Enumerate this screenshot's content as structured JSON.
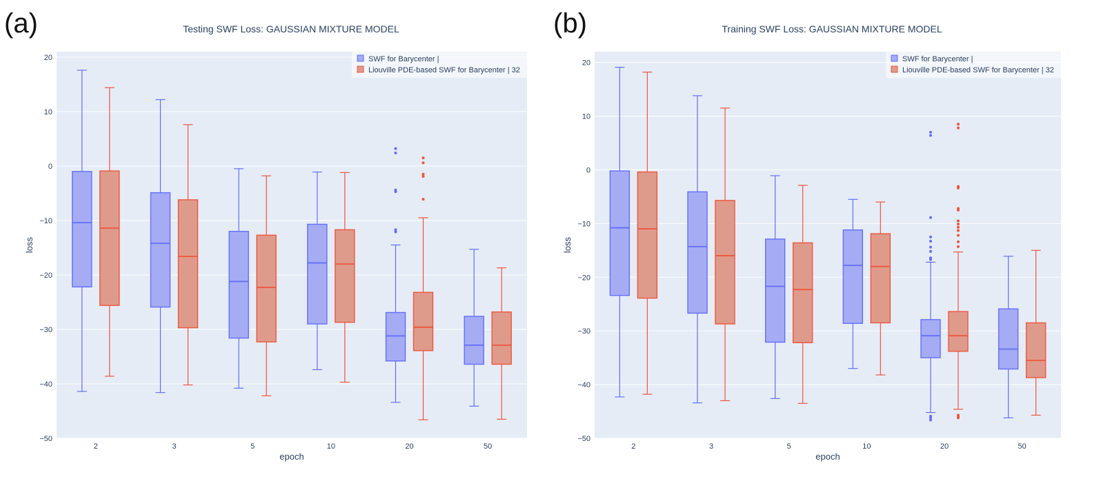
{
  "colors": {
    "plot_bg": "#e5ecf6",
    "grid": "#ffffff",
    "text": "#2a3f5f",
    "swf_line": "#636efa",
    "swf_fill": "#a5acf3",
    "liouville_line": "#ef553b",
    "liouville_fill": "#de9b8c"
  },
  "panels": [
    {
      "letter": "(a)"
    },
    {
      "letter": "(b)"
    }
  ],
  "chart_data": [
    {
      "type": "box",
      "title": "Testing SWF Loss: GAUSSIAN MIXTURE MODEL",
      "xlabel": "epoch",
      "ylabel": "loss",
      "ylim": [
        -50,
        21
      ],
      "yticks": [
        20,
        10,
        0,
        -10,
        -20,
        -30,
        -40,
        -50
      ],
      "ytick_labels": [
        "20",
        "10",
        "0",
        "−10",
        "−20",
        "−30",
        "−40",
        "−50"
      ],
      "categories": [
        "2",
        "3",
        "5",
        "10",
        "20",
        "50"
      ],
      "grid": true,
      "legend_position": "top-right",
      "series": [
        {
          "name": "SWF for Barycenter |",
          "color": "#636efa",
          "boxes": [
            {
              "min": -41.4,
              "q1": -22.2,
              "median": -10.4,
              "q3": -1.0,
              "max": 17.6,
              "outliers": []
            },
            {
              "min": -41.6,
              "q1": -25.9,
              "median": -14.2,
              "q3": -4.9,
              "max": 12.2,
              "outliers": []
            },
            {
              "min": -40.8,
              "q1": -31.6,
              "median": -21.2,
              "q3": -12.0,
              "max": -0.5,
              "outliers": []
            },
            {
              "min": -37.4,
              "q1": -29.0,
              "median": -17.8,
              "q3": -10.7,
              "max": -1.1,
              "outliers": []
            },
            {
              "min": -43.4,
              "q1": -35.8,
              "median": -31.2,
              "q3": -26.9,
              "max": -14.5,
              "outliers": [
                3.2,
                2.4,
                -4.4,
                -4.7,
                -11.7,
                -12.1
              ]
            },
            {
              "min": -44.1,
              "q1": -36.4,
              "median": -32.9,
              "q3": -27.6,
              "max": -15.3,
              "outliers": []
            }
          ]
        },
        {
          "name": "Liouville PDE-based SWF for Barycenter | 32",
          "color": "#ef553b",
          "boxes": [
            {
              "min": -38.6,
              "q1": -25.6,
              "median": -11.4,
              "q3": -0.9,
              "max": 14.4,
              "outliers": []
            },
            {
              "min": -40.2,
              "q1": -29.7,
              "median": -16.6,
              "q3": -6.2,
              "max": 7.6,
              "outliers": []
            },
            {
              "min": -42.2,
              "q1": -32.3,
              "median": -22.3,
              "q3": -12.7,
              "max": -1.8,
              "outliers": []
            },
            {
              "min": -39.7,
              "q1": -28.7,
              "median": -18.0,
              "q3": -11.7,
              "max": -1.2,
              "outliers": []
            },
            {
              "min": -46.6,
              "q1": -33.9,
              "median": -29.6,
              "q3": -23.2,
              "max": -9.5,
              "outliers": [
                1.5,
                0.6,
                -1.5,
                -1.9,
                -6.1
              ]
            },
            {
              "min": -46.5,
              "q1": -36.4,
              "median": -32.9,
              "q3": -26.8,
              "max": -18.7,
              "outliers": []
            }
          ]
        }
      ]
    },
    {
      "type": "box",
      "title": "Training SWF Loss: GAUSSIAN MIXTURE MODEL",
      "xlabel": "epoch",
      "ylabel": "loss",
      "ylim": [
        -50,
        22
      ],
      "yticks": [
        20,
        10,
        0,
        -10,
        -20,
        -30,
        -40,
        -50
      ],
      "ytick_labels": [
        "20",
        "10",
        "0",
        "−10",
        "−20",
        "−30",
        "−40",
        "−50"
      ],
      "categories": [
        "2",
        "3",
        "5",
        "10",
        "20",
        "50"
      ],
      "grid": true,
      "legend_position": "top-right",
      "series": [
        {
          "name": "SWF for Barycenter |",
          "color": "#636efa",
          "boxes": [
            {
              "min": -42.3,
              "q1": -23.4,
              "median": -10.8,
              "q3": -0.2,
              "max": 19.1,
              "outliers": []
            },
            {
              "min": -43.4,
              "q1": -26.7,
              "median": -14.3,
              "q3": -4.1,
              "max": 13.8,
              "outliers": []
            },
            {
              "min": -42.6,
              "q1": -32.1,
              "median": -21.7,
              "q3": -12.9,
              "max": -1.1,
              "outliers": []
            },
            {
              "min": -37.0,
              "q1": -28.6,
              "median": -17.8,
              "q3": -11.2,
              "max": -5.5,
              "outliers": []
            },
            {
              "min": -45.2,
              "q1": -35.0,
              "median": -30.9,
              "q3": -27.9,
              "max": -17.2,
              "outliers": [
                7.0,
                6.4,
                -8.9,
                -12.5,
                -13.3,
                -14.4,
                -15.2,
                -16.4,
                -16.7,
                -45.9,
                -46.2,
                -46.6
              ]
            },
            {
              "min": -46.2,
              "q1": -37.1,
              "median": -33.4,
              "q3": -25.9,
              "max": -16.1,
              "outliers": []
            }
          ]
        },
        {
          "name": "Liouville PDE-based SWF for Barycenter | 32",
          "color": "#ef553b",
          "boxes": [
            {
              "min": -41.8,
              "q1": -23.9,
              "median": -11.0,
              "q3": -0.4,
              "max": 18.2,
              "outliers": []
            },
            {
              "min": -43.0,
              "q1": -28.7,
              "median": -16.0,
              "q3": -5.7,
              "max": 11.5,
              "outliers": []
            },
            {
              "min": -43.5,
              "q1": -32.2,
              "median": -22.3,
              "q3": -13.6,
              "max": -2.9,
              "outliers": []
            },
            {
              "min": -38.2,
              "q1": -28.5,
              "median": -18.0,
              "q3": -11.9,
              "max": -6.0,
              "outliers": []
            },
            {
              "min": -44.6,
              "q1": -33.8,
              "median": -30.9,
              "q3": -26.4,
              "max": -15.3,
              "outliers": [
                8.5,
                7.8,
                -3.1,
                -3.4,
                -7.2,
                -7.5,
                -9.5,
                -10.1,
                -10.7,
                -11.3,
                -12.2,
                -13.4,
                -14.3,
                -45.7,
                -46.0,
                -46.2
              ]
            },
            {
              "min": -45.7,
              "q1": -38.7,
              "median": -35.5,
              "q3": -28.5,
              "max": -15.0,
              "outliers": []
            }
          ]
        }
      ]
    }
  ]
}
